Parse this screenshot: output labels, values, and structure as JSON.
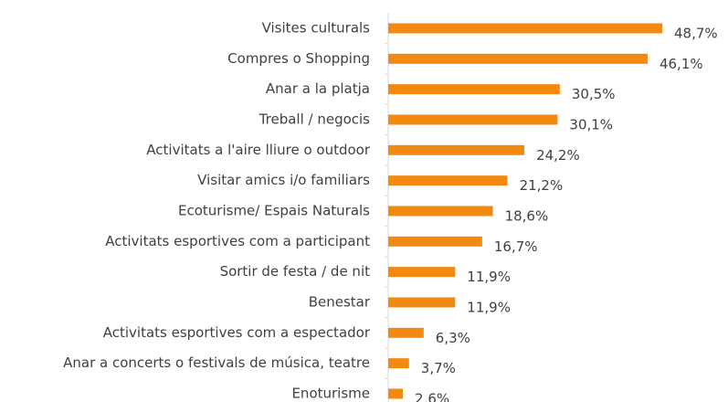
{
  "chart_data": {
    "type": "bar",
    "orientation": "horizontal",
    "categories": [
      "Visites culturals",
      "Compres o Shopping",
      "Anar a la platja",
      "Treball / negocis",
      "Activitats a l'aire lliure o outdoor",
      "Visitar amics i/o familiars",
      "Ecoturisme/ Espais Naturals",
      "Activitats esportives com a participant",
      "Sortir de festa / de nit",
      "Benestar",
      "Activitats esportives com a espectador",
      "Anar a concerts o festivals de música, teatre",
      "Enoturisme"
    ],
    "values": [
      48.7,
      46.1,
      30.5,
      30.1,
      24.2,
      21.2,
      18.6,
      16.7,
      11.9,
      11.9,
      6.3,
      3.7,
      2.6
    ],
    "value_labels": [
      "48,7%",
      "46,1%",
      "30,5%",
      "30,1%",
      "24,2%",
      "21,2%",
      "18,6%",
      "16,7%",
      "11,9%",
      "11,9%",
      "6,3%",
      "3,7%",
      "2,6%"
    ],
    "color": "#f28a12"
  }
}
